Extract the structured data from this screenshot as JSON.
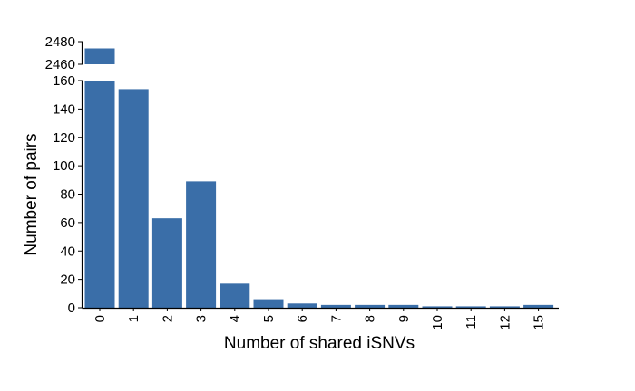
{
  "chart_data": {
    "type": "bar",
    "title": "",
    "xlabel": "Number of shared iSNVs",
    "ylabel": "Number of pairs",
    "categories": [
      "0",
      "1",
      "2",
      "3",
      "4",
      "5",
      "6",
      "7",
      "8",
      "9",
      "10",
      "11",
      "12",
      "15"
    ],
    "values": [
      2474,
      154,
      63,
      89,
      17,
      6,
      3,
      2,
      2,
      2,
      1,
      1,
      1,
      2
    ],
    "bar_color": "#3a6ea8",
    "axis_break": true,
    "lower_ylim": [
      0,
      160
    ],
    "lower_yticks": [
      "0",
      "20",
      "40",
      "60",
      "80",
      "100",
      "120",
      "140",
      "160"
    ],
    "upper_ylim": [
      2460,
      2480
    ],
    "upper_yticks": [
      "2460",
      "2480"
    ],
    "grid": false,
    "legend": "none"
  }
}
